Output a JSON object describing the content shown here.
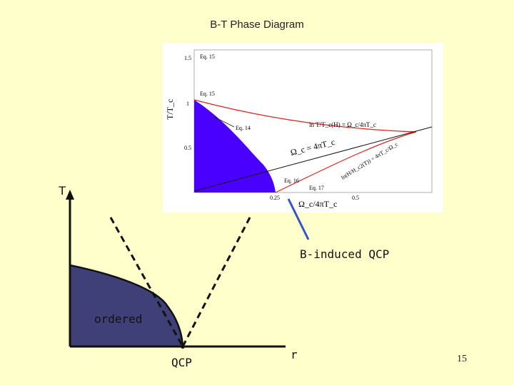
{
  "slide": {
    "title": "B-T Phase Diagram",
    "page_number": "15"
  },
  "inset": {
    "ylabel": "T/T_c",
    "xlabel": "Ω_c/4πT_c",
    "yticks": [
      "1.5",
      "1",
      "0.5"
    ],
    "xticks": [
      "0.25",
      "0.5"
    ],
    "annotations": {
      "eq15a": "Eq. 15",
      "eq15b": "Eq. 15",
      "eq14": "Eq. 14",
      "eq16": "Eq. 16",
      "eq17": "Eq. 17",
      "red_curve_formula": "ln T/T_c(H) = Ω_c/4πT_c",
      "black_line_formula": "Ω_c = 4πT_c",
      "lower_red_formula": "ln(H/H_c2(T)) = 4πT_c/Ω_c"
    },
    "colors": {
      "ordered_region": "#4A00FF",
      "curves": "#E02020",
      "lines": "#111111"
    }
  },
  "sketch": {
    "t_axis_label": "T",
    "ordered_label": "ordered",
    "qcp_label": "QCP",
    "r_axis_label": "r",
    "b_induced_label": "B-induced QCP",
    "colors": {
      "ordered_region": "#404078",
      "arrow": "#3355CC"
    }
  }
}
